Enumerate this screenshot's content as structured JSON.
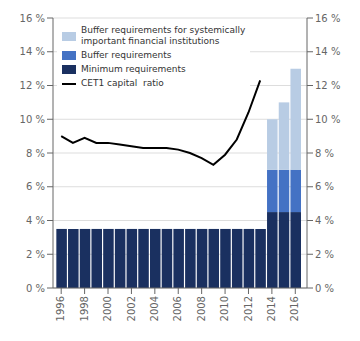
{
  "chart_data": {
    "type": "bar",
    "stacked": true,
    "x": [
      1996,
      1997,
      1998,
      1999,
      2000,
      2001,
      2002,
      2003,
      2004,
      2005,
      2006,
      2007,
      2008,
      2009,
      2010,
      2011,
      2012,
      2013,
      2014,
      2015,
      2016
    ],
    "series": [
      {
        "name": "Minimum requirements",
        "color": "#1a3060",
        "values": [
          3.5,
          3.5,
          3.5,
          3.5,
          3.5,
          3.5,
          3.5,
          3.5,
          3.5,
          3.5,
          3.5,
          3.5,
          3.5,
          3.5,
          3.5,
          3.5,
          3.5,
          3.5,
          4.5,
          4.5,
          4.5
        ]
      },
      {
        "name": "Buffer requirements",
        "color": "#4472c4",
        "values": [
          0,
          0,
          0,
          0,
          0,
          0,
          0,
          0,
          0,
          0,
          0,
          0,
          0,
          0,
          0,
          0,
          0,
          0,
          2.5,
          2.5,
          2.5
        ]
      },
      {
        "name": "Buffer requirements for systemically\nimportant financial institutions",
        "color": "#b8cce4",
        "values": [
          0,
          0,
          0,
          0,
          0,
          0,
          0,
          0,
          0,
          0,
          0,
          0,
          0,
          0,
          0,
          0,
          0,
          0,
          3.0,
          4.0,
          6.0
        ]
      },
      {
        "name": "CET1 capital  ratio",
        "type": "line",
        "color": "#000000",
        "values": [
          9.0,
          8.6,
          8.9,
          8.6,
          8.6,
          8.5,
          8.4,
          8.3,
          8.3,
          8.3,
          8.2,
          8.0,
          7.7,
          7.3,
          7.9,
          8.8,
          10.4,
          12.3,
          null,
          null,
          null
        ]
      }
    ],
    "xlim": [
      1995.3,
      2017
    ],
    "xticks": [
      1996,
      1998,
      2000,
      2002,
      2004,
      2006,
      2008,
      2010,
      2012,
      2014,
      2016
    ],
    "ylim": [
      0,
      16
    ],
    "yticks": [
      {
        "value": 0,
        "label": "0 %"
      },
      {
        "value": 2,
        "label": "2 %"
      },
      {
        "value": 4,
        "label": "4 %"
      },
      {
        "value": 6,
        "label": "6 %"
      },
      {
        "value": 8,
        "label": "8 %"
      },
      {
        "value": 10,
        "label": "10 %"
      },
      {
        "value": 12,
        "label": "12 %"
      },
      {
        "value": 14,
        "label": "14 %"
      },
      {
        "value": 16,
        "label": "16 %"
      }
    ],
    "y2lim": [
      0,
      16
    ],
    "y2ticks": [
      {
        "value": 0,
        "label": "0 %"
      },
      {
        "value": 2,
        "label": "2 %"
      },
      {
        "value": 4,
        "label": "4 %"
      },
      {
        "value": 6,
        "label": "6 %"
      },
      {
        "value": 8,
        "label": "8 %"
      },
      {
        "value": 10,
        "label": "10 %"
      },
      {
        "value": 12,
        "label": "12 %"
      },
      {
        "value": 14,
        "label": "14 %"
      },
      {
        "value": 16,
        "label": "16 %"
      }
    ],
    "grid": true,
    "legend": "upper left"
  }
}
